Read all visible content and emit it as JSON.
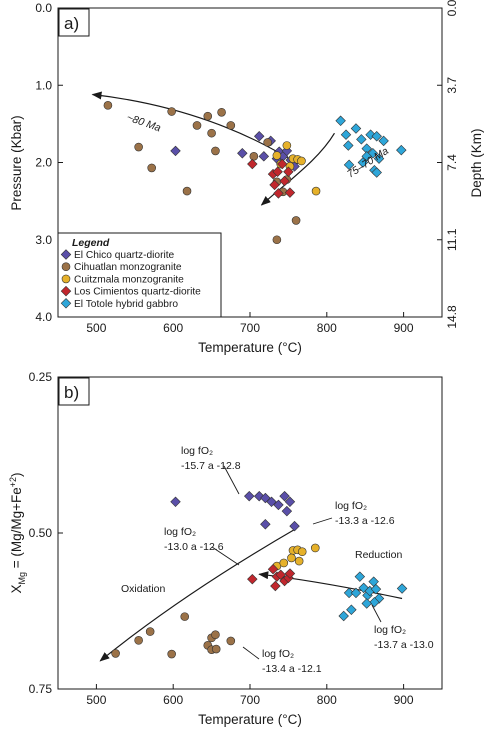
{
  "chart_data": [
    {
      "panel": "a)",
      "type": "scatter",
      "xlabel": "Temperature (°C)",
      "ylabel": "Pressure (Kbar)",
      "y2label": "Depth (Km)",
      "xlim": [
        450,
        950
      ],
      "ylim": [
        0.0,
        4.0
      ],
      "y_inverted": true,
      "xticks": [
        "500",
        "600",
        "700",
        "800",
        "900"
      ],
      "yticks": [
        "0.0",
        "1.0",
        "2.0",
        "3.0",
        "4.0"
      ],
      "y2ticks": [
        {
          "pressure": 0.0,
          "label": "0.0"
        },
        {
          "pressure": 1.0,
          "label": "3.7"
        },
        {
          "pressure": 2.0,
          "label": "7.4"
        },
        {
          "pressure": 3.0,
          "label": "11.1"
        },
        {
          "pressure": 4.0,
          "label": "14.8"
        }
      ],
      "legend": {
        "title": "Legend",
        "position": "bottom-left",
        "entries": [
          {
            "label": "El Chico quartz-diorite",
            "color": "#5a4fa8",
            "marker": "diamond"
          },
          {
            "label": "Cihuatlan monzogranite",
            "color": "#9b7248",
            "marker": "circle"
          },
          {
            "label": "Cuitzmala monzogranite",
            "color": "#e6b12a",
            "marker": "circle"
          },
          {
            "label": "Los Cimientos quartz-diorite",
            "color": "#c1272d",
            "marker": "diamond"
          },
          {
            "label": "El Totole hybrid gabbro",
            "color": "#2ea6d9",
            "marker": "diamond"
          }
        ]
      },
      "annotations": [
        {
          "text": "~80 Ma"
        },
        {
          "text": "75–70 Ma"
        }
      ],
      "series": [
        {
          "name": "El Chico quartz-diorite",
          "marker": "diamond",
          "color": "#5a4fa8",
          "points": [
            [
              603,
              1.85
            ],
            [
              690,
              1.88
            ],
            [
              712,
              1.66
            ],
            [
              718,
              1.92
            ],
            [
              727,
              1.72
            ],
            [
              735,
              1.95
            ],
            [
              738,
              1.86
            ],
            [
              743,
              1.92
            ],
            [
              748,
              1.85
            ],
            [
              753,
              1.97
            ],
            [
              758,
              2.05
            ]
          ]
        },
        {
          "name": "Cihuatlan monzogranite",
          "marker": "circle",
          "color": "#9b7248",
          "points": [
            [
              515,
              1.26
            ],
            [
              555,
              1.8
            ],
            [
              572,
              2.07
            ],
            [
              598,
              1.34
            ],
            [
              618,
              2.37
            ],
            [
              631,
              1.52
            ],
            [
              645,
              1.4
            ],
            [
              650,
              1.62
            ],
            [
              655,
              1.85
            ],
            [
              663,
              1.35
            ],
            [
              675,
              1.52
            ],
            [
              705,
              1.92
            ],
            [
              723,
              1.74
            ],
            [
              735,
              2.25
            ],
            [
              735,
              3.0
            ],
            [
              743,
              2.38
            ],
            [
              760,
              2.75
            ],
            [
              748,
              2.22
            ]
          ]
        },
        {
          "name": "Cuitzmala monzogranite",
          "marker": "circle",
          "color": "#e6b12a",
          "points": [
            [
              735,
              1.91
            ],
            [
              740,
              2.02
            ],
            [
              748,
              1.78
            ],
            [
              756,
              1.95
            ],
            [
              762,
              1.96
            ],
            [
              767,
              1.98
            ],
            [
              752,
              2.05
            ],
            [
              786,
              2.37
            ]
          ]
        },
        {
          "name": "Los Cimientos quartz-diorite",
          "marker": "diamond",
          "color": "#c1272d",
          "points": [
            [
              703,
              2.02
            ],
            [
              730,
              2.15
            ],
            [
              732,
              2.29
            ],
            [
              736,
              2.12
            ],
            [
              742,
              2.02
            ],
            [
              745,
              2.24
            ],
            [
              750,
              2.12
            ],
            [
              737,
              2.4
            ],
            [
              752,
              2.39
            ]
          ]
        },
        {
          "name": "El Totole hybrid gabbro",
          "marker": "diamond",
          "color": "#2ea6d9",
          "points": [
            [
              818,
              1.46
            ],
            [
              825,
              1.64
            ],
            [
              838,
              1.56
            ],
            [
              845,
              1.7
            ],
            [
              852,
              1.82
            ],
            [
              857,
              1.64
            ],
            [
              860,
              1.88
            ],
            [
              865,
              1.66
            ],
            [
              852,
              1.92
            ],
            [
              847,
              2.0
            ],
            [
              868,
              1.95
            ],
            [
              874,
              1.72
            ],
            [
              897,
              1.84
            ],
            [
              862,
              2.1
            ],
            [
              865,
              2.13
            ],
            [
              829,
              2.03
            ],
            [
              828,
              1.78
            ]
          ]
        }
      ]
    },
    {
      "panel": "b)",
      "type": "scatter",
      "xlabel": "Temperature (°C)",
      "ylabel": "X_Mg = (Mg/Mg+Fe+2)",
      "ylabel_parts": {
        "main": "X",
        "main_sub": "Mg",
        "eq": " = (Mg/Mg+Fe",
        "sup": "+2",
        "close": ")"
      },
      "xlim": [
        450,
        950
      ],
      "ylim": [
        0.25,
        0.75
      ],
      "y_inverted": true,
      "xticks": [
        "500",
        "600",
        "700",
        "800",
        "900"
      ],
      "yticks": [
        "0.25",
        "0.50",
        "0.75"
      ],
      "annotations": [
        {
          "line1": "log fO₂",
          "line2": "-15.7 a -12.8"
        },
        {
          "line1": "log fO₂",
          "line2": "-13.3 a -12.6"
        },
        {
          "line1": "log fO₂",
          "line2": "-13.0 a -12.6"
        },
        {
          "line1": "log fO₂",
          "line2": "-13.4 a -12.1"
        },
        {
          "line1": "log fO₂",
          "line2": "-13.7 a -13.0"
        },
        {
          "text": "Oxidation"
        },
        {
          "text": "Reduction"
        }
      ],
      "series": [
        {
          "name": "El Chico quartz-diorite",
          "marker": "diamond",
          "color": "#5a4fa8",
          "points": [
            [
              603,
              0.45
            ],
            [
              699,
              0.441
            ],
            [
              712,
              0.441
            ],
            [
              720,
              0.444
            ],
            [
              728,
              0.45
            ],
            [
              737,
              0.455
            ],
            [
              745,
              0.441
            ],
            [
              752,
              0.45
            ],
            [
              748,
              0.465
            ],
            [
              758,
              0.489
            ],
            [
              720,
              0.486
            ]
          ]
        },
        {
          "name": "Cihuatlan monzogranite",
          "marker": "circle",
          "color": "#9b7248",
          "points": [
            [
              525,
              0.693
            ],
            [
              555,
              0.672
            ],
            [
              570,
              0.658
            ],
            [
              598,
              0.694
            ],
            [
              615,
              0.634
            ],
            [
              645,
              0.68
            ],
            [
              650,
              0.668
            ],
            [
              650,
              0.687
            ],
            [
              656,
              0.686
            ],
            [
              675,
              0.673
            ],
            [
              655,
              0.663
            ]
          ]
        },
        {
          "name": "Cuitzmala monzogranite",
          "marker": "circle",
          "color": "#e6b12a",
          "points": [
            [
              735,
              0.553
            ],
            [
              744,
              0.548
            ],
            [
              756,
              0.528
            ],
            [
              762,
              0.527
            ],
            [
              768,
              0.53
            ],
            [
              764,
              0.545
            ],
            [
              754,
              0.54
            ],
            [
              785,
              0.524
            ]
          ]
        },
        {
          "name": "Los Cimientos quartz-diorite",
          "marker": "diamond",
          "color": "#c1272d",
          "points": [
            [
              703,
              0.574
            ],
            [
              730,
              0.558
            ],
            [
              735,
              0.57
            ],
            [
              740,
              0.567
            ],
            [
              745,
              0.577
            ],
            [
              750,
              0.572
            ],
            [
              733,
              0.585
            ],
            [
              752,
              0.565
            ]
          ]
        },
        {
          "name": "El Totole hybrid gabbro",
          "marker": "diamond",
          "color": "#2ea6d9",
          "points": [
            [
              822,
              0.633
            ],
            [
              829,
              0.596
            ],
            [
              832,
              0.623
            ],
            [
              838,
              0.596
            ],
            [
              843,
              0.57
            ],
            [
              848,
              0.588
            ],
            [
              853,
              0.6
            ],
            [
              856,
              0.593
            ],
            [
              861,
              0.578
            ],
            [
              864,
              0.59
            ],
            [
              868,
              0.605
            ],
            [
              862,
              0.611
            ],
            [
              852,
              0.613
            ],
            [
              898,
              0.589
            ]
          ]
        }
      ]
    }
  ]
}
